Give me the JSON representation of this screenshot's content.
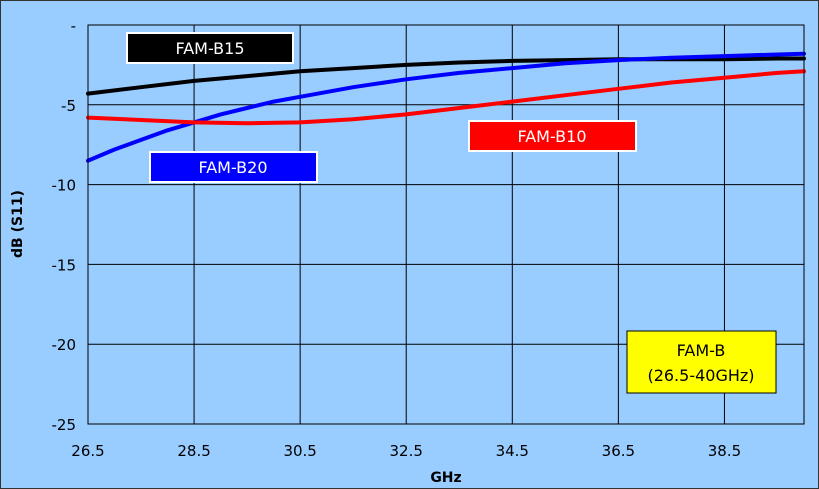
{
  "chart_data": {
    "type": "line",
    "xlabel": "GHz",
    "ylabel": "dB (S11)",
    "xlim": [
      26.5,
      40
    ],
    "ylim": [
      -25,
      0
    ],
    "x_ticks": [
      "26.5",
      "28.5",
      "30.5",
      "32.5",
      "34.5",
      "36.5",
      "38.5"
    ],
    "y_ticks": [
      "-",
      "-5",
      "-10",
      "-15",
      "-20",
      "-25"
    ],
    "grid": true,
    "series": [
      {
        "name": "FAM-B15",
        "color": "#000000",
        "x": [
          26.5,
          27.5,
          28.5,
          29.5,
          30.5,
          31.5,
          32.5,
          33.5,
          34.5,
          35.5,
          36.5,
          37.5,
          38.5,
          39.5,
          40
        ],
        "y": [
          -4.3,
          -3.9,
          -3.5,
          -3.2,
          -2.9,
          -2.7,
          -2.5,
          -2.35,
          -2.25,
          -2.2,
          -2.15,
          -2.15,
          -2.15,
          -2.1,
          -2.1
        ]
      },
      {
        "name": "FAM-B20",
        "color": "#0000ff",
        "x": [
          26.5,
          27.0,
          27.5,
          28.0,
          28.5,
          29.0,
          29.5,
          30.0,
          30.5,
          31.5,
          32.5,
          33.5,
          34.5,
          35.5,
          36.5,
          37.5,
          38.5,
          39.5,
          40
        ],
        "y": [
          -8.5,
          -7.8,
          -7.2,
          -6.6,
          -6.1,
          -5.6,
          -5.2,
          -4.8,
          -4.5,
          -3.9,
          -3.4,
          -3.0,
          -2.7,
          -2.4,
          -2.2,
          -2.05,
          -1.95,
          -1.85,
          -1.8
        ]
      },
      {
        "name": "FAM-B10",
        "color": "#ff0000",
        "x": [
          26.5,
          27.5,
          28.5,
          29.5,
          30.5,
          31.5,
          32.5,
          33.5,
          34.5,
          35.5,
          36.5,
          37.5,
          38.5,
          39.5,
          40
        ],
        "y": [
          -5.8,
          -5.95,
          -6.1,
          -6.15,
          -6.1,
          -5.9,
          -5.6,
          -5.2,
          -4.8,
          -4.4,
          -4.0,
          -3.6,
          -3.3,
          -3.0,
          -2.9
        ]
      }
    ],
    "annotations": [
      {
        "text": "FAM-B15",
        "series": "FAM-B15"
      },
      {
        "text": "FAM-B20",
        "series": "FAM-B20"
      },
      {
        "text": "FAM-B10",
        "series": "FAM-B10"
      },
      {
        "text": "FAM-B",
        "line2": "(26.5-40GHz)",
        "color": "#ffff00"
      }
    ]
  }
}
